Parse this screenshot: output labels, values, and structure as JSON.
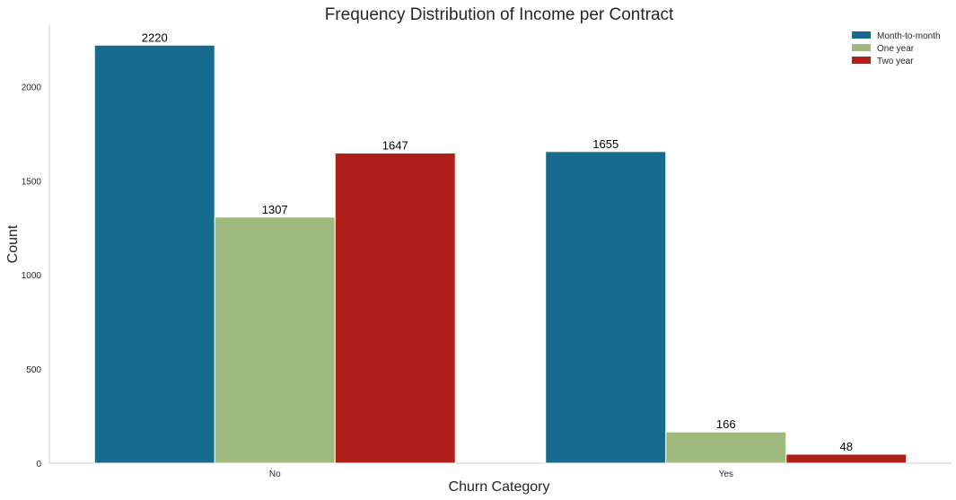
{
  "chart_data": {
    "type": "bar",
    "title": "Frequency Distribution of Income per Contract",
    "xlabel": "Churn Category",
    "ylabel": "Count",
    "categories": [
      "No",
      "Yes"
    ],
    "series": [
      {
        "name": "Month-to-month",
        "color": "#176b8f",
        "values": [
          2220,
          1655
        ],
        "labels": [
          "2220",
          "1655"
        ]
      },
      {
        "name": "One year",
        "color": "#9fb97f",
        "values": [
          1307,
          166
        ],
        "labels": [
          "1307",
          "166"
        ]
      },
      {
        "name": "Two year",
        "color": "#b0201b",
        "values": [
          1647,
          48
        ],
        "labels": [
          "1647",
          "48"
        ]
      }
    ],
    "ylim": [
      0,
      2331
    ],
    "yticks": [
      0,
      500,
      1000,
      1500,
      2000
    ],
    "ytick_labels": [
      "0",
      "500",
      "1000",
      "1500",
      "2000"
    ],
    "grid": false,
    "legend_position": "top-right"
  }
}
